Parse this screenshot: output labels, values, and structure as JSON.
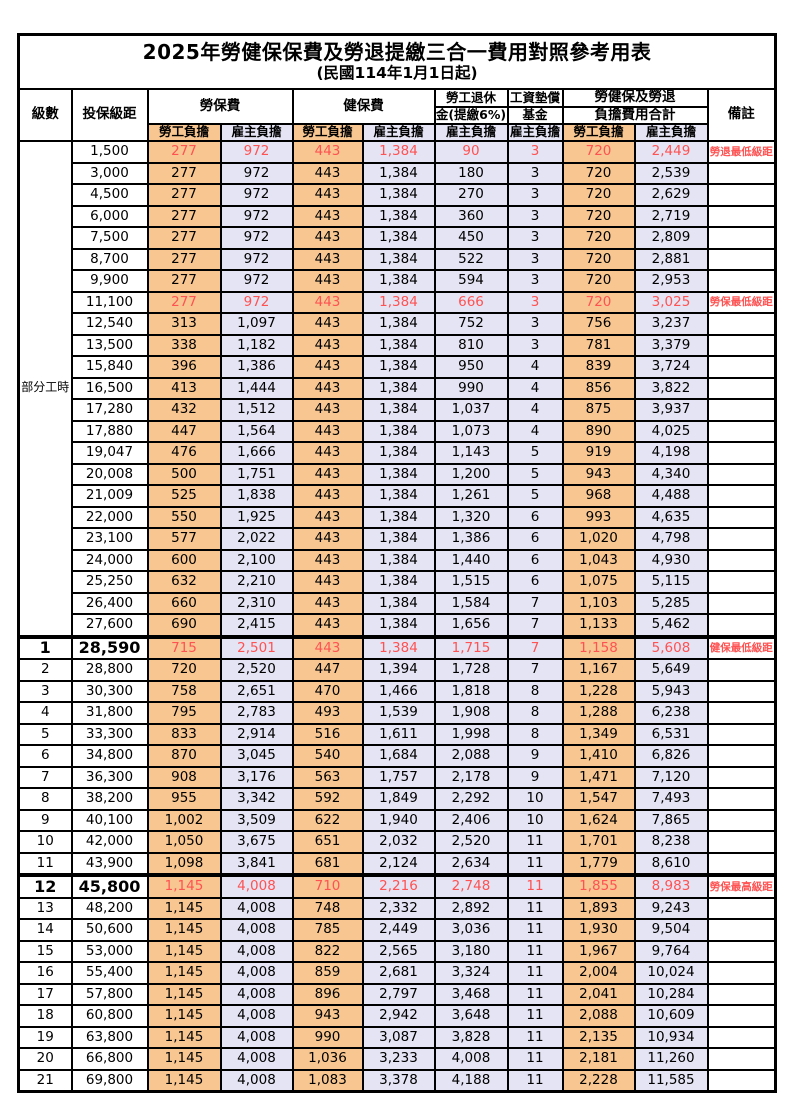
{
  "title": "2025年勞健保保費及勞退提繳三合一費用對照參考用表",
  "subtitle": "(民國114年1月1日起)",
  "colors": {
    "employee_bg": "#F8C791",
    "employer_bg": "#E4E4F4",
    "highlight_text": "#FF5252",
    "border": "#000000"
  },
  "header": {
    "level": "級數",
    "bracket": "投保級距",
    "labor_insurance": "勞保費",
    "health_insurance": "健保費",
    "pension_line1": "勞工退休",
    "pension_line2": "金(提繳6%)",
    "wage_fund_line1": "工資墊償",
    "wage_fund_line2": "基金",
    "total_line1": "勞健保及勞退",
    "total_line2": "負擔費用合計",
    "remark": "備註",
    "employee": "勞工負擔",
    "employer": "雇主負擔"
  },
  "table": {
    "part_time_label": "部分工時",
    "part_time_rowspan": 23,
    "columns": [
      "級數",
      "投保級距",
      "勞保費-勞工負擔",
      "勞保費-雇主負擔",
      "健保費-勞工負擔",
      "健保費-雇主負擔",
      "勞工退休金(提繳6%)-雇主負擔",
      "工資墊償基金-雇主負擔",
      "合計-勞工負擔",
      "合計-雇主負擔",
      "備註"
    ],
    "rows": [
      {
        "level": "",
        "bracket": "1,500",
        "v": [
          "277",
          "972",
          "443",
          "1,384",
          "90",
          "3",
          "720",
          "2,449"
        ],
        "remark": "勞退最低級距",
        "red": true
      },
      {
        "level": "",
        "bracket": "3,000",
        "v": [
          "277",
          "972",
          "443",
          "1,384",
          "180",
          "3",
          "720",
          "2,539"
        ],
        "remark": ""
      },
      {
        "level": "",
        "bracket": "4,500",
        "v": [
          "277",
          "972",
          "443",
          "1,384",
          "270",
          "3",
          "720",
          "2,629"
        ],
        "remark": ""
      },
      {
        "level": "",
        "bracket": "6,000",
        "v": [
          "277",
          "972",
          "443",
          "1,384",
          "360",
          "3",
          "720",
          "2,719"
        ],
        "remark": ""
      },
      {
        "level": "",
        "bracket": "7,500",
        "v": [
          "277",
          "972",
          "443",
          "1,384",
          "450",
          "3",
          "720",
          "2,809"
        ],
        "remark": ""
      },
      {
        "level": "",
        "bracket": "8,700",
        "v": [
          "277",
          "972",
          "443",
          "1,384",
          "522",
          "3",
          "720",
          "2,881"
        ],
        "remark": ""
      },
      {
        "level": "",
        "bracket": "9,900",
        "v": [
          "277",
          "972",
          "443",
          "1,384",
          "594",
          "3",
          "720",
          "2,953"
        ],
        "remark": ""
      },
      {
        "level": "",
        "bracket": "11,100",
        "v": [
          "277",
          "972",
          "443",
          "1,384",
          "666",
          "3",
          "720",
          "3,025"
        ],
        "remark": "勞保最低級距",
        "red": true
      },
      {
        "level": "",
        "bracket": "12,540",
        "v": [
          "313",
          "1,097",
          "443",
          "1,384",
          "752",
          "3",
          "756",
          "3,237"
        ],
        "remark": ""
      },
      {
        "level": "",
        "bracket": "13,500",
        "v": [
          "338",
          "1,182",
          "443",
          "1,384",
          "810",
          "3",
          "781",
          "3,379"
        ],
        "remark": ""
      },
      {
        "level": "",
        "bracket": "15,840",
        "v": [
          "396",
          "1,386",
          "443",
          "1,384",
          "950",
          "4",
          "839",
          "3,724"
        ],
        "remark": ""
      },
      {
        "level": "",
        "bracket": "16,500",
        "v": [
          "413",
          "1,444",
          "443",
          "1,384",
          "990",
          "4",
          "856",
          "3,822"
        ],
        "remark": ""
      },
      {
        "level": "",
        "bracket": "17,280",
        "v": [
          "432",
          "1,512",
          "443",
          "1,384",
          "1,037",
          "4",
          "875",
          "3,937"
        ],
        "remark": ""
      },
      {
        "level": "",
        "bracket": "17,880",
        "v": [
          "447",
          "1,564",
          "443",
          "1,384",
          "1,073",
          "4",
          "890",
          "4,025"
        ],
        "remark": ""
      },
      {
        "level": "",
        "bracket": "19,047",
        "v": [
          "476",
          "1,666",
          "443",
          "1,384",
          "1,143",
          "5",
          "919",
          "4,198"
        ],
        "remark": ""
      },
      {
        "level": "",
        "bracket": "20,008",
        "v": [
          "500",
          "1,751",
          "443",
          "1,384",
          "1,200",
          "5",
          "943",
          "4,340"
        ],
        "remark": ""
      },
      {
        "level": "",
        "bracket": "21,009",
        "v": [
          "525",
          "1,838",
          "443",
          "1,384",
          "1,261",
          "5",
          "968",
          "4,488"
        ],
        "remark": ""
      },
      {
        "level": "",
        "bracket": "22,000",
        "v": [
          "550",
          "1,925",
          "443",
          "1,384",
          "1,320",
          "6",
          "993",
          "4,635"
        ],
        "remark": ""
      },
      {
        "level": "",
        "bracket": "23,100",
        "v": [
          "577",
          "2,022",
          "443",
          "1,384",
          "1,386",
          "6",
          "1,020",
          "4,798"
        ],
        "remark": ""
      },
      {
        "level": "",
        "bracket": "24,000",
        "v": [
          "600",
          "2,100",
          "443",
          "1,384",
          "1,440",
          "6",
          "1,043",
          "4,930"
        ],
        "remark": ""
      },
      {
        "level": "",
        "bracket": "25,250",
        "v": [
          "632",
          "2,210",
          "443",
          "1,384",
          "1,515",
          "6",
          "1,075",
          "5,115"
        ],
        "remark": ""
      },
      {
        "level": "",
        "bracket": "26,400",
        "v": [
          "660",
          "2,310",
          "443",
          "1,384",
          "1,584",
          "7",
          "1,103",
          "5,285"
        ],
        "remark": ""
      },
      {
        "level": "",
        "bracket": "27,600",
        "v": [
          "690",
          "2,415",
          "443",
          "1,384",
          "1,656",
          "7",
          "1,133",
          "5,462"
        ],
        "remark": ""
      },
      {
        "level": "1",
        "bracket": "28,590",
        "v": [
          "715",
          "2,501",
          "443",
          "1,384",
          "1,715",
          "7",
          "1,158",
          "5,608"
        ],
        "remark": "健保最低級距",
        "red": true,
        "big": true,
        "thickTop": true
      },
      {
        "level": "2",
        "bracket": "28,800",
        "v": [
          "720",
          "2,520",
          "447",
          "1,394",
          "1,728",
          "7",
          "1,167",
          "5,649"
        ],
        "remark": ""
      },
      {
        "level": "3",
        "bracket": "30,300",
        "v": [
          "758",
          "2,651",
          "470",
          "1,466",
          "1,818",
          "8",
          "1,228",
          "5,943"
        ],
        "remark": ""
      },
      {
        "level": "4",
        "bracket": "31,800",
        "v": [
          "795",
          "2,783",
          "493",
          "1,539",
          "1,908",
          "8",
          "1,288",
          "6,238"
        ],
        "remark": ""
      },
      {
        "level": "5",
        "bracket": "33,300",
        "v": [
          "833",
          "2,914",
          "516",
          "1,611",
          "1,998",
          "8",
          "1,349",
          "6,531"
        ],
        "remark": ""
      },
      {
        "level": "6",
        "bracket": "34,800",
        "v": [
          "870",
          "3,045",
          "540",
          "1,684",
          "2,088",
          "9",
          "1,410",
          "6,826"
        ],
        "remark": ""
      },
      {
        "level": "7",
        "bracket": "36,300",
        "v": [
          "908",
          "3,176",
          "563",
          "1,757",
          "2,178",
          "9",
          "1,471",
          "7,120"
        ],
        "remark": ""
      },
      {
        "level": "8",
        "bracket": "38,200",
        "v": [
          "955",
          "3,342",
          "592",
          "1,849",
          "2,292",
          "10",
          "1,547",
          "7,493"
        ],
        "remark": ""
      },
      {
        "level": "9",
        "bracket": "40,100",
        "v": [
          "1,002",
          "3,509",
          "622",
          "1,940",
          "2,406",
          "10",
          "1,624",
          "7,865"
        ],
        "remark": ""
      },
      {
        "level": "10",
        "bracket": "42,000",
        "v": [
          "1,050",
          "3,675",
          "651",
          "2,032",
          "2,520",
          "11",
          "1,701",
          "8,238"
        ],
        "remark": ""
      },
      {
        "level": "11",
        "bracket": "43,900",
        "v": [
          "1,098",
          "3,841",
          "681",
          "2,124",
          "2,634",
          "11",
          "1,779",
          "8,610"
        ],
        "remark": ""
      },
      {
        "level": "12",
        "bracket": "45,800",
        "v": [
          "1,145",
          "4,008",
          "710",
          "2,216",
          "2,748",
          "11",
          "1,855",
          "8,983"
        ],
        "remark": "勞保最高級距",
        "red": true,
        "big": true,
        "thickTop": true
      },
      {
        "level": "13",
        "bracket": "48,200",
        "v": [
          "1,145",
          "4,008",
          "748",
          "2,332",
          "2,892",
          "11",
          "1,893",
          "9,243"
        ],
        "remark": ""
      },
      {
        "level": "14",
        "bracket": "50,600",
        "v": [
          "1,145",
          "4,008",
          "785",
          "2,449",
          "3,036",
          "11",
          "1,930",
          "9,504"
        ],
        "remark": ""
      },
      {
        "level": "15",
        "bracket": "53,000",
        "v": [
          "1,145",
          "4,008",
          "822",
          "2,565",
          "3,180",
          "11",
          "1,967",
          "9,764"
        ],
        "remark": ""
      },
      {
        "level": "16",
        "bracket": "55,400",
        "v": [
          "1,145",
          "4,008",
          "859",
          "2,681",
          "3,324",
          "11",
          "2,004",
          "10,024"
        ],
        "remark": ""
      },
      {
        "level": "17",
        "bracket": "57,800",
        "v": [
          "1,145",
          "4,008",
          "896",
          "2,797",
          "3,468",
          "11",
          "2,041",
          "10,284"
        ],
        "remark": ""
      },
      {
        "level": "18",
        "bracket": "60,800",
        "v": [
          "1,145",
          "4,008",
          "943",
          "2,942",
          "3,648",
          "11",
          "2,088",
          "10,609"
        ],
        "remark": ""
      },
      {
        "level": "19",
        "bracket": "63,800",
        "v": [
          "1,145",
          "4,008",
          "990",
          "3,087",
          "3,828",
          "11",
          "2,135",
          "10,934"
        ],
        "remark": ""
      },
      {
        "level": "20",
        "bracket": "66,800",
        "v": [
          "1,145",
          "4,008",
          "1,036",
          "3,233",
          "4,008",
          "11",
          "2,181",
          "11,260"
        ],
        "remark": ""
      },
      {
        "level": "21",
        "bracket": "69,800",
        "v": [
          "1,145",
          "4,008",
          "1,083",
          "3,378",
          "4,188",
          "11",
          "2,228",
          "11,585"
        ],
        "remark": ""
      }
    ]
  }
}
